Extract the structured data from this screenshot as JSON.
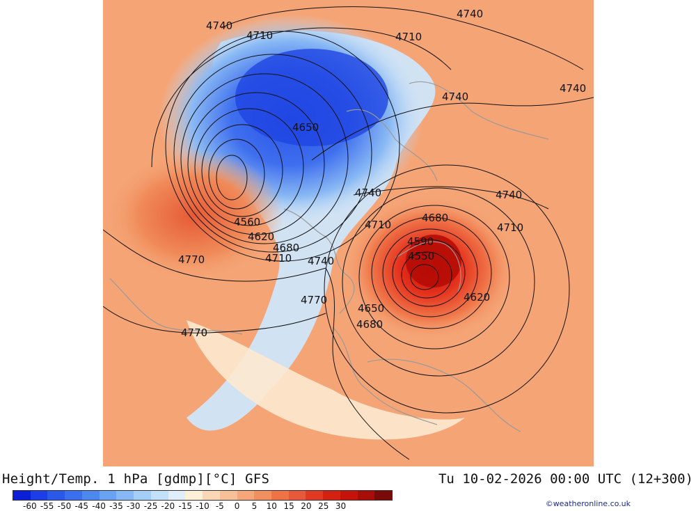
{
  "title": "Height/Temp. 1 hPa [gdmp][°C] GFS",
  "datetime": "Tu 10-02-2026 00:00 UTC (12+300)",
  "credit": "©weatheronline.co.uk",
  "colorbar": {
    "colors": [
      "#0a1fd6",
      "#1c3ee6",
      "#2a59ea",
      "#3a70ee",
      "#4d88f0",
      "#6aa2f3",
      "#86b8f6",
      "#a4cdf8",
      "#c3e0fa",
      "#e0eefb",
      "#fdf0d9",
      "#fbd8b5",
      "#f8c098",
      "#f5a77a",
      "#f28f5e",
      "#ee7447",
      "#e8583a",
      "#e03a22",
      "#d42212",
      "#c4130a",
      "#a80d08",
      "#7a0a06"
    ],
    "ticks": [
      "-60",
      "-55",
      "-50",
      "-45",
      "-40",
      "-35",
      "-30",
      "-25",
      "-20",
      "-15",
      "-10",
      "-5",
      "0",
      "5",
      "10",
      "15",
      "20",
      "25",
      "30"
    ]
  },
  "contour_labels": [
    "4740",
    "4710",
    "4710",
    "4740",
    "4740",
    "4740",
    "4650",
    "4740",
    "4740",
    "4710",
    "4680",
    "4710",
    "4560",
    "4620",
    "4680",
    "4710",
    "4740",
    "4770",
    "4590",
    "4550",
    "4620",
    "4650",
    "4680",
    "4770",
    "4770"
  ]
}
